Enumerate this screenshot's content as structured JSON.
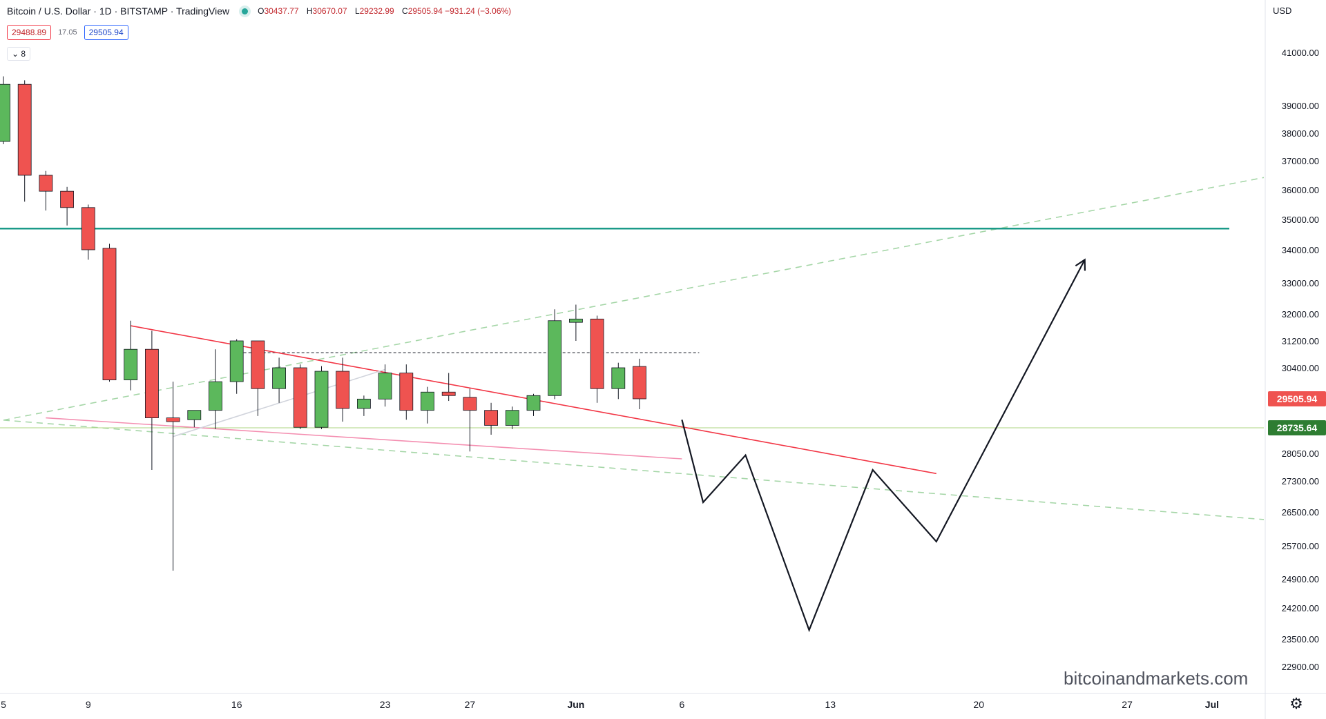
{
  "header": {
    "symbol": "Bitcoin / U.S. Dollar · 1D · BITSTAMP · TradingView",
    "ohlc": [
      {
        "k": "O",
        "v": "30437.77"
      },
      {
        "k": "H",
        "v": "30670.07"
      },
      {
        "k": "L",
        "v": "29232.99"
      },
      {
        "k": "C",
        "v": "29505.94 −931.24 (−3.06%)"
      }
    ]
  },
  "trade": {
    "sell": "29488.89",
    "spread": "17.05",
    "buy": "29505.94"
  },
  "collapse_label": "8",
  "currency": "USD",
  "watermark": "bitcoinandmarkets.com",
  "colors": {
    "up": "#5cb85c",
    "down": "#ef5350",
    "support": "#1a9a88",
    "trend": "#f23645",
    "channel": "#a5d6a7",
    "projection": "#131722"
  },
  "chart_data": {
    "type": "candlestick",
    "y_ticks": [
      41000,
      39000,
      38000,
      37000,
      36000,
      35000,
      34000,
      33000,
      32000,
      31200,
      30400,
      28050,
      27300,
      26500,
      25700,
      24900,
      24200,
      23500,
      22900
    ],
    "y_tick_labels": [
      "41000.00",
      "39000.00",
      "38000.00",
      "37000.00",
      "36000.00",
      "35000.00",
      "34000.00",
      "33000.00",
      "32000.00",
      "31200.00",
      "30400.00",
      "28050.00",
      "27300.00",
      "26500.00",
      "25700.00",
      "24900.00",
      "24200.00",
      "23500.00",
      "22900.00"
    ],
    "price_labels": [
      {
        "value": 29505.94,
        "text": "29505.94",
        "color": "#ef5350"
      },
      {
        "value": 28735.64,
        "text": "28735.64",
        "color": "#2e7d32"
      }
    ],
    "x_ticks": [
      {
        "label": "5",
        "day": -1
      },
      {
        "label": "9",
        "day": 3
      },
      {
        "label": "16",
        "day": 10
      },
      {
        "label": "23",
        "day": 17
      },
      {
        "label": "27",
        "day": 21
      },
      {
        "label": "Jun",
        "day": 26
      },
      {
        "label": "6",
        "day": 31
      },
      {
        "label": "13",
        "day": 38
      },
      {
        "label": "20",
        "day": 45
      },
      {
        "label": "27",
        "day": 52
      },
      {
        "label": "Jul",
        "day": 56
      }
    ],
    "candles": [
      {
        "day": -1,
        "o": 37700,
        "h": 40100,
        "l": 37600,
        "c": 39800
      },
      {
        "day": 0,
        "o": 39800,
        "h": 39950,
        "l": 35600,
        "c": 36500
      },
      {
        "day": 1,
        "o": 36500,
        "h": 36650,
        "l": 35300,
        "c": 35950
      },
      {
        "day": 2,
        "o": 35950,
        "h": 36100,
        "l": 34800,
        "c": 35400
      },
      {
        "day": 3,
        "o": 35400,
        "h": 35500,
        "l": 33700,
        "c": 34000
      },
      {
        "day": 4,
        "o": 34050,
        "h": 34200,
        "l": 30000,
        "c": 30050
      },
      {
        "day": 5,
        "o": 30050,
        "h": 31800,
        "l": 29750,
        "c": 30950
      },
      {
        "day": 6,
        "o": 30950,
        "h": 31500,
        "l": 27600,
        "c": 29000
      },
      {
        "day": 7,
        "o": 29000,
        "h": 30000,
        "l": 25100,
        "c": 28900
      },
      {
        "day": 8,
        "o": 28950,
        "h": 29100,
        "l": 28750,
        "c": 29200
      },
      {
        "day": 9,
        "o": 29200,
        "h": 30950,
        "l": 28700,
        "c": 30000
      },
      {
        "day": 10,
        "o": 30000,
        "h": 31250,
        "l": 29650,
        "c": 31200
      },
      {
        "day": 11,
        "o": 31200,
        "h": 31200,
        "l": 29050,
        "c": 29800
      },
      {
        "day": 12,
        "o": 29800,
        "h": 30700,
        "l": 29400,
        "c": 30400
      },
      {
        "day": 13,
        "o": 30400,
        "h": 30500,
        "l": 28700,
        "c": 28750
      },
      {
        "day": 14,
        "o": 28750,
        "h": 30450,
        "l": 28700,
        "c": 30300
      },
      {
        "day": 15,
        "o": 30300,
        "h": 30700,
        "l": 28900,
        "c": 29250
      },
      {
        "day": 16,
        "o": 29250,
        "h": 29600,
        "l": 29050,
        "c": 29500
      },
      {
        "day": 17,
        "o": 29500,
        "h": 30500,
        "l": 29300,
        "c": 30250
      },
      {
        "day": 18,
        "o": 30250,
        "h": 30500,
        "l": 28950,
        "c": 29200
      },
      {
        "day": 19,
        "o": 29200,
        "h": 29850,
        "l": 28850,
        "c": 29700
      },
      {
        "day": 20,
        "o": 29700,
        "h": 30250,
        "l": 29450,
        "c": 29600
      },
      {
        "day": 21,
        "o": 29550,
        "h": 29800,
        "l": 28100,
        "c": 29200
      },
      {
        "day": 22,
        "o": 29200,
        "h": 29400,
        "l": 28550,
        "c": 28800
      },
      {
        "day": 23,
        "o": 28800,
        "h": 29300,
        "l": 28700,
        "c": 29200
      },
      {
        "day": 24,
        "o": 29200,
        "h": 29650,
        "l": 29050,
        "c": 29600
      },
      {
        "day": 25,
        "o": 29600,
        "h": 32150,
        "l": 29500,
        "c": 31800
      },
      {
        "day": 26,
        "o": 31750,
        "h": 32300,
        "l": 31200,
        "c": 31850
      },
      {
        "day": 27,
        "o": 31850,
        "h": 31950,
        "l": 29400,
        "c": 29800
      },
      {
        "day": 28,
        "o": 29800,
        "h": 30550,
        "l": 29500,
        "c": 30400
      },
      {
        "day": 29,
        "o": 30440,
        "h": 30670,
        "l": 29230,
        "c": 29506
      }
    ],
    "horizontal_levels": [
      {
        "value": 34700,
        "style": "solid",
        "color": "#1a9a88"
      },
      {
        "value": 28735.64,
        "style": "thin",
        "color": "#aed581"
      }
    ],
    "dotted_level": {
      "value": 30850,
      "from_day": 10,
      "to_day": 31
    },
    "channel_lines": [
      {
        "p1": {
          "day": -1,
          "v": 28940
        },
        "p2": {
          "day": 59,
          "v": 36500
        }
      },
      {
        "p1": {
          "day": -1,
          "v": 28940
        },
        "p2": {
          "day": 59,
          "v": 26300
        }
      }
    ],
    "trend_lines": [
      {
        "p1": {
          "day": 5,
          "v": 31650
        },
        "p2": {
          "day": 43,
          "v": 27500
        },
        "color": "#f23645"
      },
      {
        "p1": {
          "day": 1,
          "v": 29000
        },
        "p2": {
          "day": 31,
          "v": 27900
        },
        "color": "#f48fb1"
      },
      {
        "p1": {
          "day": 7,
          "v": 28500
        },
        "p2": {
          "day": 17,
          "v": 30350
        },
        "color": "#d1d4dc"
      }
    ],
    "projection": [
      {
        "day": 31,
        "v": 28950
      },
      {
        "day": 32,
        "v": 26750
      },
      {
        "day": 34,
        "v": 28000
      },
      {
        "day": 37,
        "v": 23700
      },
      {
        "day": 40,
        "v": 27600
      },
      {
        "day": 43,
        "v": 25800
      },
      {
        "day": 50,
        "v": 33700
      }
    ]
  }
}
